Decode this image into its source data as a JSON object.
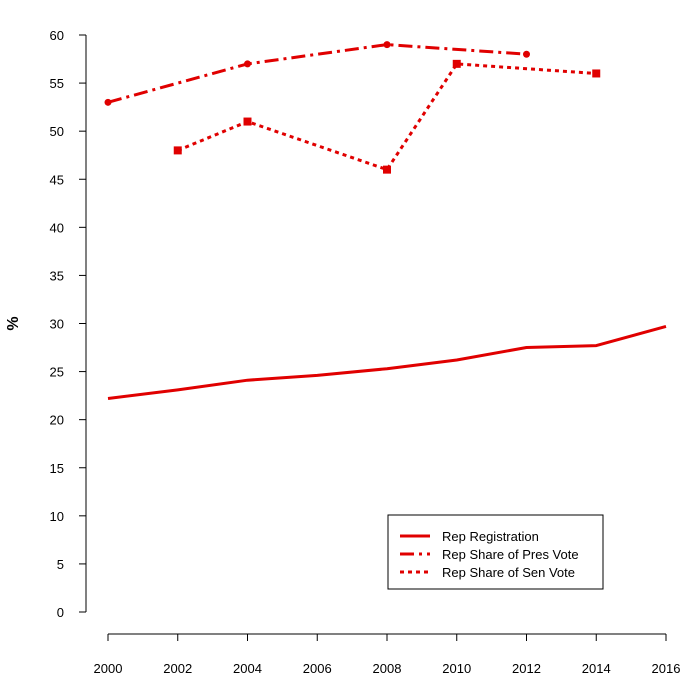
{
  "chart_data": {
    "type": "line",
    "title": "",
    "xlabel": "",
    "ylabel": "%",
    "xlim": [
      2000,
      2016
    ],
    "ylim": [
      0,
      60
    ],
    "x_ticks": [
      "2000",
      "2002",
      "2004",
      "2006",
      "2008",
      "2010",
      "2012",
      "2014",
      "2016"
    ],
    "y_ticks": [
      "0",
      "5",
      "10",
      "15",
      "20",
      "25",
      "30",
      "35",
      "40",
      "45",
      "50",
      "55",
      "60"
    ],
    "grid": false,
    "legend_position": "bottom-right",
    "series": [
      {
        "name": "Rep Registration",
        "style": "solid",
        "color": "#e00000",
        "markers": false,
        "points": [
          {
            "x": 2000,
            "y": 22.2
          },
          {
            "x": 2002,
            "y": 23.1
          },
          {
            "x": 2004,
            "y": 24.1
          },
          {
            "x": 2006,
            "y": 24.6
          },
          {
            "x": 2008,
            "y": 25.3
          },
          {
            "x": 2010,
            "y": 26.2
          },
          {
            "x": 2012,
            "y": 27.5
          },
          {
            "x": 2014,
            "y": 27.7
          },
          {
            "x": 2016,
            "y": 29.7
          }
        ]
      },
      {
        "name": "Rep Share of Pres Vote",
        "style": "dashdot",
        "color": "#e00000",
        "markers": true,
        "points": [
          {
            "x": 2000,
            "y": 53
          },
          {
            "x": 2004,
            "y": 57
          },
          {
            "x": 2008,
            "y": 59
          },
          {
            "x": 2012,
            "y": 58
          }
        ]
      },
      {
        "name": "Rep Share of Sen Vote",
        "style": "dotted",
        "color": "#e00000",
        "markers": true,
        "points": [
          {
            "x": 2002,
            "y": 48
          },
          {
            "x": 2004,
            "y": 51
          },
          {
            "x": 2008,
            "y": 46
          },
          {
            "x": 2010,
            "y": 57
          },
          {
            "x": 2014,
            "y": 56
          }
        ]
      }
    ]
  }
}
